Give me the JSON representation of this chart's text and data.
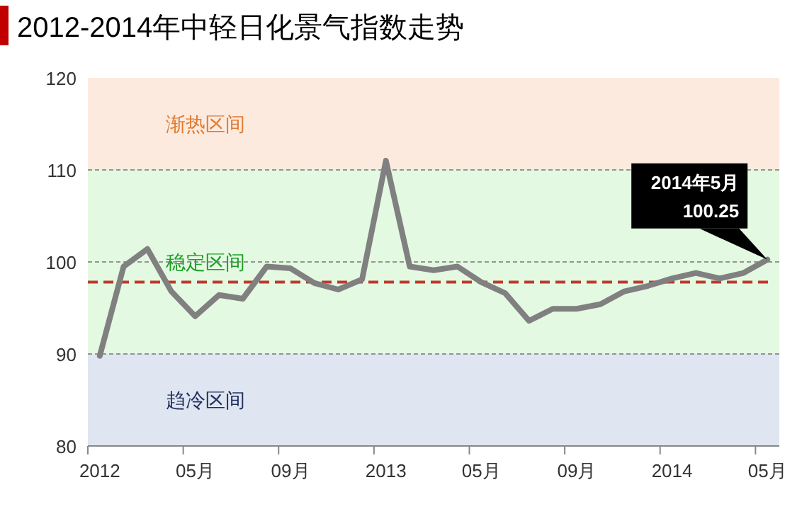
{
  "chart_data": {
    "type": "line",
    "title": "2012-2014年中轻日化景气指数走势",
    "categories": [
      "2012",
      null,
      null,
      null,
      "05月",
      null,
      null,
      null,
      "09月",
      null,
      null,
      null,
      "2013",
      null,
      null,
      null,
      "05月",
      null,
      null,
      null,
      "09月",
      null,
      null,
      null,
      "2014",
      null,
      null,
      null,
      "05月"
    ],
    "series": [
      {
        "color": "#808080",
        "values": [
          89.8,
          99.5,
          101.4,
          96.8,
          94.1,
          96.4,
          96.0,
          99.5,
          99.3,
          97.7,
          97.0,
          98.1,
          111.0,
          99.5,
          99.1,
          99.5,
          97.8,
          96.6,
          93.6,
          94.9,
          94.9,
          95.4,
          96.8,
          97.4,
          98.2,
          98.8,
          98.2,
          98.8,
          100.25
        ]
      }
    ],
    "ylim": [
      80,
      120
    ],
    "yticks": [
      80,
      90,
      100,
      110,
      120
    ],
    "grid": "y",
    "bands": [
      {
        "axis": "y",
        "from": 80,
        "to": 90,
        "label": "趋冷区间",
        "color": "#dfe6f2"
      },
      {
        "axis": "y",
        "from": 90,
        "to": 110,
        "label": "稳定区间",
        "color": "#e3f9e1"
      },
      {
        "axis": "y",
        "from": 110,
        "to": 120,
        "label": "渐热区间",
        "color": "#fdeadf"
      }
    ],
    "ref_lines": [
      {
        "axis": "y",
        "value": 97.8,
        "color": "#c0392b",
        "line_style": "dashed"
      }
    ],
    "annotations": [
      "2014年5月",
      "100.25"
    ]
  }
}
